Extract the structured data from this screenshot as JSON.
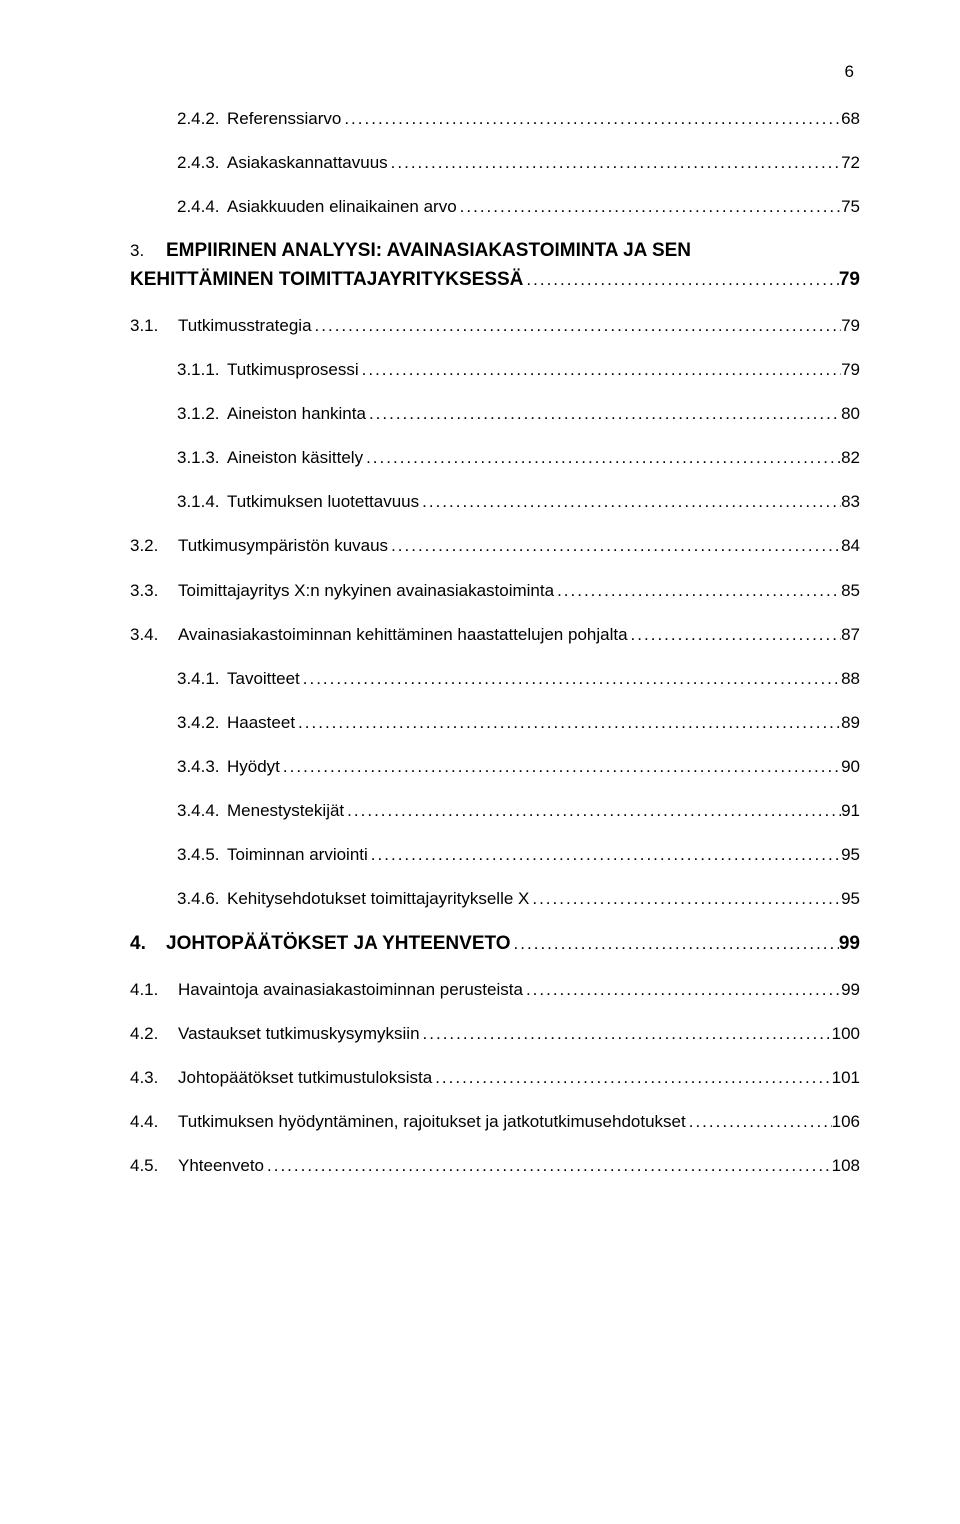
{
  "page_number": "6",
  "leader_char": ".",
  "entries": [
    {
      "level": "lvl-3",
      "num": "2.4.2.",
      "numpad": 50,
      "title": "Referenssiarvo",
      "page": "68"
    },
    {
      "level": "lvl-3",
      "num": "2.4.3.",
      "numpad": 50,
      "title": "Asiakaskannattavuus",
      "page": "72"
    },
    {
      "level": "lvl-3",
      "num": "2.4.4.",
      "numpad": 50,
      "title": "Asiakkuuden elinaikainen arvo",
      "page": "75"
    },
    {
      "level": "lvl-1b",
      "num": "3.",
      "numpad": 36,
      "title": "EMPIIRINEN ANALYYSI: AVAINASIAKASTOIMINTA JA SEN KEHITTÄMINEN TOIMITTAJAYRITYKSESSÄ",
      "page": "79",
      "wrap": true
    },
    {
      "level": "lvl-2",
      "num": "3.1.",
      "numpad": 48,
      "title": "Tutkimusstrategia",
      "page": "79"
    },
    {
      "level": "lvl-3",
      "num": "3.1.1.",
      "numpad": 50,
      "title": "Tutkimusprosessi",
      "page": "79"
    },
    {
      "level": "lvl-3",
      "num": "3.1.2.",
      "numpad": 50,
      "title": "Aineiston hankinta",
      "page": "80"
    },
    {
      "level": "lvl-3",
      "num": "3.1.3.",
      "numpad": 50,
      "title": "Aineiston käsittely",
      "page": "82"
    },
    {
      "level": "lvl-3",
      "num": "3.1.4.",
      "numpad": 50,
      "title": "Tutkimuksen luotettavuus",
      "page": "83"
    },
    {
      "level": "lvl-2",
      "num": "3.2.",
      "numpad": 48,
      "title": "Tutkimusympäristön kuvaus",
      "page": "84"
    },
    {
      "level": "lvl-2",
      "num": "3.3.",
      "numpad": 48,
      "title": "Toimittajayritys X:n nykyinen avainasiakastoiminta",
      "page": "85"
    },
    {
      "level": "lvl-2",
      "num": "3.4.",
      "numpad": 48,
      "title": "Avainasiakastoiminnan kehittäminen haastattelujen pohjalta",
      "page": "87"
    },
    {
      "level": "lvl-3",
      "num": "3.4.1.",
      "numpad": 50,
      "title": "Tavoitteet",
      "page": "88"
    },
    {
      "level": "lvl-3",
      "num": "3.4.2.",
      "numpad": 50,
      "title": "Haasteet",
      "page": "89"
    },
    {
      "level": "lvl-3",
      "num": "3.4.3.",
      "numpad": 50,
      "title": "Hyödyt",
      "page": "90"
    },
    {
      "level": "lvl-3",
      "num": "3.4.4.",
      "numpad": 50,
      "title": "Menestystekijät",
      "page": "91"
    },
    {
      "level": "lvl-3",
      "num": "3.4.5.",
      "numpad": 50,
      "title": "Toiminnan arviointi",
      "page": "95"
    },
    {
      "level": "lvl-3",
      "num": "3.4.6.",
      "numpad": 50,
      "title": "Kehitysehdotukset toimittajayritykselle X",
      "page": "95"
    },
    {
      "level": "lvl-1",
      "num": "4.",
      "numpad": 36,
      "title": "JOHTOPÄÄTÖKSET JA YHTEENVETO",
      "page": "99"
    },
    {
      "level": "lvl-2",
      "num": "4.1.",
      "numpad": 48,
      "title": "Havaintoja avainasiakastoiminnan perusteista",
      "page": "99"
    },
    {
      "level": "lvl-2",
      "num": "4.2.",
      "numpad": 48,
      "title": "Vastaukset tutkimuskysymyksiin",
      "page": "100"
    },
    {
      "level": "lvl-2",
      "num": "4.3.",
      "numpad": 48,
      "title": "Johtopäätökset tutkimustuloksista",
      "page": "101"
    },
    {
      "level": "lvl-2",
      "num": "4.4.",
      "numpad": 48,
      "title": "Tutkimuksen hyödyntäminen, rajoitukset ja jatkotutkimusehdotukset",
      "page": "106"
    },
    {
      "level": "lvl-2",
      "num": "4.5.",
      "numpad": 48,
      "title": "Yhteenveto",
      "page": "108"
    }
  ]
}
